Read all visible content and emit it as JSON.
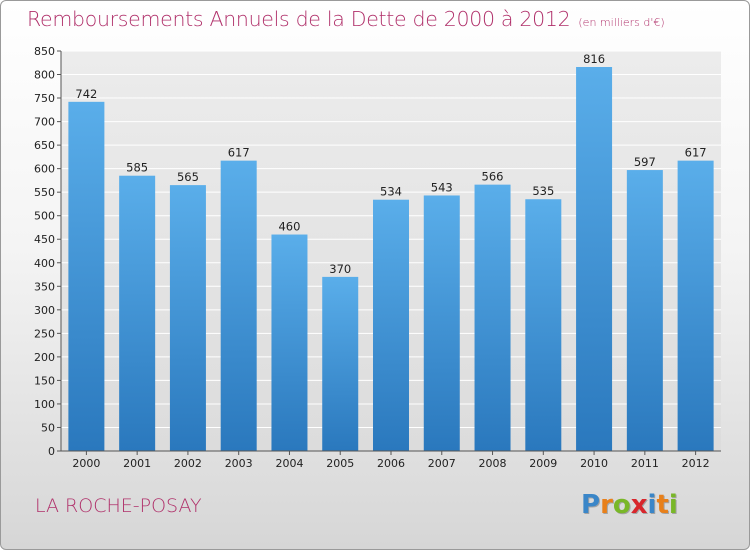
{
  "header": {
    "title": "Remboursements Annuels de la Dette de 2000 à 2012",
    "subtitle": "(en milliers d'€)"
  },
  "footer": {
    "commune": "LA ROCHE-POSAY",
    "logo": [
      "P",
      "r",
      "o",
      "x",
      "i",
      "t",
      "i"
    ],
    "logo_colors": [
      "#3a86c8",
      "#e8801a",
      "#79b728",
      "#d8262c",
      "#3a86c8",
      "#e8801a",
      "#79b728"
    ]
  },
  "chart_data": {
    "type": "bar",
    "title": "Remboursements Annuels de la Dette de 2000 à 2012",
    "subtitle": "(en milliers d'€)",
    "categories": [
      "2000",
      "2001",
      "2002",
      "2003",
      "2004",
      "2005",
      "2006",
      "2007",
      "2008",
      "2009",
      "2010",
      "2011",
      "2012"
    ],
    "values": [
      742,
      585,
      565,
      617,
      460,
      370,
      534,
      543,
      566,
      535,
      816,
      597,
      617
    ],
    "value_labels": [
      "742",
      "585",
      "565",
      "617",
      "460",
      "370",
      "534",
      "543",
      "566",
      "535",
      "816",
      "597",
      "617"
    ],
    "yticks": [
      "0",
      "50",
      "100",
      "150",
      "200",
      "250",
      "300",
      "350",
      "400",
      "450",
      "500",
      "550",
      "600",
      "650",
      "700",
      "750",
      "800",
      "850"
    ],
    "ylim": [
      0,
      850
    ],
    "grid": true,
    "bar_color": "#4fa3e2",
    "bar_color_dark": "#2a78bd"
  }
}
